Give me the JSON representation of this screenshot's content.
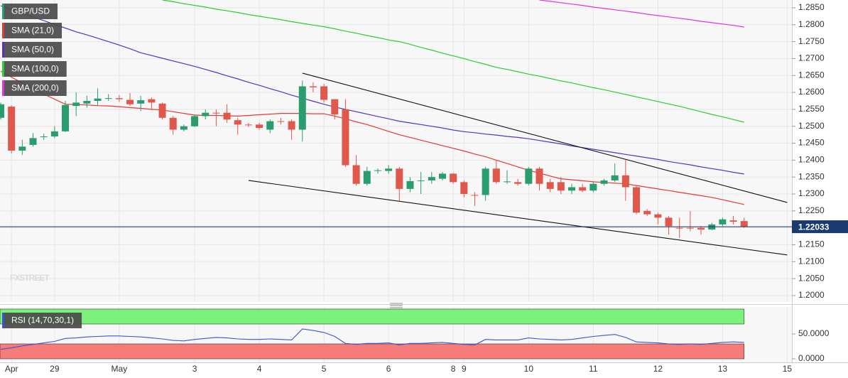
{
  "chart_data": {
    "type": "candlestick",
    "symbol": "GBP/USD",
    "watermark": "FXSTREET",
    "categories": [
      null,
      "Apr",
      null,
      null,
      null,
      "29",
      null,
      null,
      null,
      null,
      null,
      "May",
      null,
      null,
      null,
      null,
      null,
      null,
      "3",
      null,
      null,
      null,
      null,
      null,
      "4",
      null,
      null,
      null,
      null,
      null,
      "5",
      null,
      null,
      null,
      null,
      null,
      "6",
      null,
      null,
      null,
      null,
      null,
      "8",
      "9",
      null,
      null,
      null,
      null,
      null,
      "10",
      null,
      null,
      null,
      null,
      null,
      "11",
      null,
      null,
      null,
      null,
      null,
      "12",
      null,
      null,
      null,
      null,
      null,
      "13",
      null,
      null,
      null,
      null,
      null,
      "15"
    ],
    "open": [
      1.2525,
      1.2558,
      1.2428,
      1.2445,
      1.2468,
      1.247,
      1.2485,
      1.256,
      1.2567,
      1.2575,
      1.2582,
      1.2583,
      1.2578,
      1.2567,
      1.258,
      1.2567,
      1.2525,
      1.249,
      1.25,
      1.253,
      1.254,
      1.254,
      1.2518,
      1.2505,
      1.2505,
      1.249,
      1.2515,
      1.2515,
      1.249,
      1.2618,
      1.2618,
      1.258,
      1.255,
      1.2385,
      1.233,
      1.2368,
      1.2368,
      1.2375,
      1.2315,
      1.2338,
      1.234,
      1.2345,
      1.236,
      1.2335,
      1.2297,
      1.2297,
      1.2375,
      1.2335,
      1.2335,
      1.233,
      1.2375,
      1.2335,
      1.2335,
      1.231,
      1.232,
      1.231,
      1.233,
      1.234,
      1.2355,
      1.232,
      1.225,
      1.224,
      1.223,
      1.22,
      1.22,
      1.22,
      1.2195,
      1.221,
      1.2222,
      1.222,
      null,
      null,
      null,
      null
    ],
    "high": [
      1.257,
      1.2562,
      1.246,
      1.248,
      1.2478,
      1.25,
      1.2575,
      1.26,
      1.259,
      1.2612,
      1.2595,
      1.2592,
      1.2598,
      1.259,
      1.2585,
      1.257,
      1.253,
      1.2505,
      1.2535,
      1.255,
      1.255,
      1.2565,
      1.2525,
      1.251,
      1.251,
      1.252,
      1.2525,
      1.252,
      1.2635,
      1.263,
      1.2625,
      1.258,
      1.258,
      1.2415,
      1.238,
      1.2375,
      1.2385,
      1.238,
      1.235,
      1.2365,
      1.2365,
      1.2365,
      1.2362,
      1.234,
      1.2305,
      1.238,
      1.24,
      1.237,
      1.2345,
      1.238,
      1.238,
      1.2345,
      1.235,
      1.233,
      1.233,
      1.2335,
      1.2345,
      1.239,
      1.24,
      1.2325,
      1.2255,
      1.2245,
      1.2235,
      1.223,
      1.225,
      1.2205,
      1.2215,
      1.223,
      1.2235,
      1.223,
      null,
      null,
      null,
      null
    ],
    "low": [
      1.252,
      1.242,
      1.2415,
      1.244,
      1.246,
      1.2465,
      1.2483,
      1.253,
      1.2555,
      1.256,
      1.2575,
      1.2572,
      1.256,
      1.2545,
      1.255,
      1.252,
      1.2475,
      1.2485,
      1.2498,
      1.252,
      1.25,
      1.251,
      1.2475,
      1.2498,
      1.249,
      1.248,
      1.2505,
      1.246,
      1.2455,
      1.26,
      1.257,
      1.252,
      1.238,
      1.2325,
      1.2325,
      1.236,
      1.236,
      1.228,
      1.2305,
      1.23,
      1.233,
      1.234,
      1.233,
      1.229,
      1.2265,
      1.228,
      1.233,
      1.233,
      1.2325,
      1.2325,
      1.231,
      1.2305,
      1.23,
      1.23,
      1.2305,
      1.2305,
      1.2325,
      1.2335,
      1.228,
      1.224,
      1.2235,
      1.221,
      1.218,
      1.217,
      1.219,
      1.218,
      1.2193,
      1.2205,
      1.221,
      1.22,
      null,
      null,
      null,
      null
    ],
    "close": [
      1.2565,
      1.2428,
      1.244,
      1.2465,
      1.247,
      1.2485,
      1.2563,
      1.257,
      1.2575,
      1.2582,
      1.2583,
      1.258,
      1.2565,
      1.2577,
      1.257,
      1.2525,
      1.249,
      1.25,
      1.253,
      1.254,
      1.2538,
      1.252,
      1.2505,
      1.2503,
      1.2495,
      1.2515,
      1.2513,
      1.249,
      1.2618,
      1.2615,
      1.2578,
      1.2535,
      1.2385,
      1.233,
      1.2368,
      1.237,
      1.2375,
      1.2315,
      1.2338,
      1.234,
      1.235,
      1.236,
      1.2335,
      1.23,
      1.2295,
      1.2375,
      1.2335,
      1.2337,
      1.233,
      1.2375,
      1.233,
      1.2315,
      1.231,
      1.232,
      1.231,
      1.233,
      1.234,
      1.2355,
      1.232,
      1.2245,
      1.224,
      1.223,
      1.2205,
      1.2198,
      1.2198,
      1.2195,
      1.221,
      1.2225,
      1.2218,
      1.22033,
      null,
      null,
      null,
      null
    ],
    "up_color": "#2a9d6f",
    "down_color": "#e0574c",
    "series": [
      {
        "name": "SMA (21,0)",
        "color": "#e53935",
        "values": [
          1.2663,
          1.2645,
          1.2628,
          1.261,
          1.2595,
          1.258,
          1.2565,
          1.2564,
          1.2563,
          1.2561,
          1.256,
          1.2558,
          1.2555,
          1.2553,
          1.255,
          1.2548,
          1.2543,
          1.2538,
          1.2533,
          1.2532,
          1.2532,
          1.2531,
          1.253,
          1.2532,
          1.2534,
          1.2536,
          1.2538,
          1.2538,
          1.2538,
          1.2537,
          1.2537,
          1.253,
          1.2522,
          1.2513,
          1.2505,
          1.2495,
          1.2485,
          1.2475,
          1.2467,
          1.2459,
          1.2451,
          1.2443,
          1.2435,
          1.2427,
          1.2418,
          1.241,
          1.24,
          1.239,
          1.238,
          1.237,
          1.2362,
          1.2353,
          1.2345,
          1.2342,
          1.2339,
          1.2336,
          1.2334,
          1.2332,
          1.233,
          1.2325,
          1.232,
          1.2315,
          1.231,
          1.2305,
          1.23,
          1.2295,
          1.229,
          1.2283,
          1.2276,
          1.2269,
          null,
          null,
          null,
          null
        ]
      },
      {
        "name": "SMA (50,0)",
        "color": "#5b2fc4",
        "values": [
          1.2856,
          1.2845,
          1.2834,
          1.2823,
          1.2812,
          1.2801,
          1.279,
          1.2779,
          1.277,
          1.276,
          1.275,
          1.274,
          1.2729,
          1.2717,
          1.2709,
          1.2701,
          1.2693,
          1.2685,
          1.2677,
          1.2668,
          1.2659,
          1.2649,
          1.264,
          1.263,
          1.2621,
          1.2611,
          1.2602,
          1.2592,
          1.2583,
          1.2574,
          1.2565,
          1.2557,
          1.255,
          1.2543,
          1.2536,
          1.2529,
          1.2522,
          1.2515,
          1.251,
          1.2505,
          1.25,
          1.2495,
          1.2489,
          1.2484,
          1.2481,
          1.2477,
          1.2474,
          1.247,
          1.2467,
          1.2463,
          1.2458,
          1.2453,
          1.2448,
          1.2442,
          1.2437,
          1.2432,
          1.2427,
          1.2422,
          1.2417,
          1.2412,
          1.2407,
          1.2402,
          1.2396,
          1.2391,
          1.2386,
          1.238,
          1.2375,
          1.237,
          1.2364,
          1.2359,
          null,
          null,
          null,
          null
        ]
      },
      {
        "name": "SMA (100,0)",
        "color": "#2ecc2e",
        "values": [
          null,
          null,
          null,
          null,
          null,
          null,
          null,
          null,
          null,
          null,
          null,
          null,
          null,
          null,
          null,
          1.2873,
          1.2868,
          1.2862,
          1.2857,
          1.2852,
          1.2846,
          1.2841,
          1.2836,
          1.283,
          1.2825,
          1.282,
          1.2815,
          1.2809,
          1.2804,
          1.2799,
          1.2794,
          1.2788,
          1.2781,
          1.2775,
          1.2768,
          1.2762,
          1.2755,
          1.275,
          1.2742,
          1.2733,
          1.2725,
          1.2716,
          1.2708,
          1.27,
          1.2691,
          1.2683,
          1.2674,
          1.2668,
          1.2661,
          1.2654,
          1.2648,
          1.2641,
          1.2634,
          1.2628,
          1.2621,
          1.2614,
          1.2608,
          1.2601,
          1.2594,
          1.2587,
          1.258,
          1.2573,
          1.2566,
          1.2559,
          1.2551,
          1.2543,
          1.2535,
          1.2528,
          1.252,
          1.2512,
          null,
          null,
          null,
          null
        ]
      },
      {
        "name": "SMA (200,0)",
        "color": "#e033e0",
        "values": [
          null,
          null,
          null,
          null,
          null,
          null,
          null,
          null,
          null,
          null,
          null,
          null,
          null,
          null,
          null,
          null,
          null,
          null,
          null,
          null,
          null,
          null,
          null,
          null,
          null,
          null,
          null,
          null,
          null,
          null,
          null,
          null,
          null,
          null,
          null,
          null,
          null,
          null,
          null,
          null,
          null,
          null,
          null,
          null,
          null,
          null,
          null,
          null,
          null,
          null,
          1.2873,
          1.2869,
          1.2865,
          1.2861,
          1.2857,
          1.2852,
          1.2848,
          1.2844,
          1.284,
          1.2836,
          1.2831,
          1.2827,
          1.2823,
          1.2819,
          1.2815,
          1.281,
          1.2806,
          1.2802,
          1.2798,
          1.2793,
          null,
          null,
          null,
          null
        ]
      }
    ],
    "trendlines": [
      {
        "from": {
          "category": 28,
          "value": 1.2657
        },
        "to": {
          "category": 73,
          "value": 1.2275
        }
      },
      {
        "from": {
          "category": 23,
          "value": 1.234
        },
        "to": {
          "category": 73,
          "value": 1.212
        }
      }
    ],
    "last_price": 1.22033,
    "ylim": [
      1.1981,
      1.2873
    ],
    "yticks": [
      {
        "value": 1.2,
        "label": "1.2000"
      },
      {
        "value": 1.205,
        "label": "1.2050"
      },
      {
        "value": 1.21,
        "label": "1.2100"
      },
      {
        "value": 1.215,
        "label": "1.2150"
      },
      {
        "value": 1.22,
        "label": "1.2200"
      },
      {
        "value": 1.225,
        "label": "1.2250"
      },
      {
        "value": 1.23,
        "label": "1.2300"
      },
      {
        "value": 1.235,
        "label": "1.2350"
      },
      {
        "value": 1.24,
        "label": "1.2400"
      },
      {
        "value": 1.245,
        "label": "1.2450"
      },
      {
        "value": 1.25,
        "label": "1.2500"
      },
      {
        "value": 1.255,
        "label": "1.2550"
      },
      {
        "value": 1.26,
        "label": "1.2600"
      },
      {
        "value": 1.265,
        "label": "1.2650"
      },
      {
        "value": 1.27,
        "label": "1.2700"
      },
      {
        "value": 1.275,
        "label": "1.2750"
      },
      {
        "value": 1.28,
        "label": "1.2800"
      },
      {
        "value": 1.285,
        "label": "1.2850"
      }
    ],
    "grid": true,
    "rsi": {
      "name": "RSI (14,70,30,1)",
      "color": "#3f51d5",
      "overbought": 70,
      "oversold": 30,
      "ylim": [
        0,
        100
      ],
      "yticks": [
        {
          "value": 0,
          "label": "0.0000"
        },
        {
          "value": 50,
          "label": "50.0000"
        }
      ],
      "values": [
        19,
        22,
        26,
        29,
        32,
        35,
        41,
        42,
        44,
        45,
        46,
        46,
        45,
        44,
        42,
        40,
        37,
        36,
        39,
        41,
        43,
        42,
        40,
        39,
        39,
        40,
        39,
        38,
        60,
        57,
        53,
        45,
        31,
        29,
        31,
        31,
        32,
        28,
        31,
        31,
        32,
        33,
        31,
        29,
        28,
        39,
        38,
        38,
        38,
        42,
        40,
        39,
        38,
        39,
        42,
        45,
        47,
        49,
        43,
        34,
        33,
        32,
        30,
        29,
        30,
        29,
        31,
        33,
        34,
        33,
        null,
        null,
        null,
        null
      ]
    }
  }
}
